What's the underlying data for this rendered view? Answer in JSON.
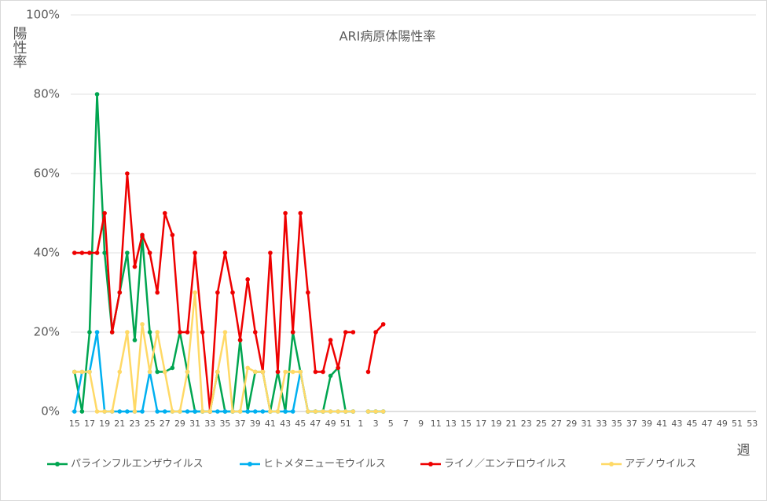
{
  "chart_data": {
    "type": "line",
    "title": "ARI病原体陽性率",
    "y_label": "陽性率",
    "x_label": "週",
    "categories": [
      "15",
      null,
      "17",
      null,
      "19",
      null,
      "21",
      null,
      "23",
      null,
      "25",
      null,
      "27",
      null,
      "29",
      null,
      "31",
      null,
      "33",
      null,
      "35",
      null,
      "37",
      null,
      "39",
      null,
      "41",
      null,
      "43",
      null,
      "45",
      null,
      "47",
      null,
      "49",
      null,
      "51",
      null,
      "1",
      null,
      "3",
      null,
      "5",
      null,
      "7",
      null,
      "9",
      null,
      "11",
      null,
      "13",
      null,
      "15",
      null,
      "17",
      null,
      "19",
      null,
      "21",
      null,
      "23",
      null,
      "25",
      null,
      "27",
      null,
      "29",
      null,
      "31",
      null,
      "33",
      null,
      "35",
      null,
      "37",
      null,
      "39",
      null,
      "41",
      null,
      "43",
      null,
      "45",
      null,
      "47",
      null,
      "49",
      null,
      "51",
      null,
      "53"
    ],
    "series": [
      {
        "name": "パラインフルエンザウイルス",
        "color": "#00a550",
        "values": [
          10,
          0,
          20,
          80,
          40,
          20,
          30,
          40,
          18,
          44,
          20,
          10,
          10,
          11,
          20,
          10,
          0,
          0,
          0,
          10,
          0,
          0,
          18,
          0,
          10,
          10,
          0,
          10,
          0,
          20,
          10,
          0,
          0,
          0,
          9,
          11,
          0,
          0,
          null,
          0,
          0,
          0,
          null,
          null,
          null,
          null,
          null,
          null,
          null,
          null,
          null,
          null,
          null,
          null,
          null,
          null,
          null,
          null,
          null,
          null,
          null,
          null,
          null,
          null,
          null,
          null,
          null,
          null,
          null,
          null,
          null,
          null,
          null,
          null,
          null,
          null,
          null,
          null,
          null,
          null,
          null,
          null,
          null,
          null,
          null,
          null,
          null,
          null,
          null,
          null,
          null
        ]
      },
      {
        "name": "ヒトメタニューモウイルス",
        "color": "#00b0f0",
        "values": [
          0,
          10,
          10,
          20,
          0,
          0,
          0,
          0,
          0,
          0,
          10,
          0,
          0,
          0,
          0,
          0,
          0,
          0,
          0,
          0,
          0,
          0,
          0,
          0,
          0,
          0,
          0,
          0,
          0,
          0,
          10,
          0,
          0,
          0,
          0,
          0,
          0,
          0,
          null,
          0,
          0,
          0,
          null,
          null,
          null,
          null,
          null,
          null,
          null,
          null,
          null,
          null,
          null,
          null,
          null,
          null,
          null,
          null,
          null,
          null,
          null,
          null,
          null,
          null,
          null,
          null,
          null,
          null,
          null,
          null,
          null,
          null,
          null,
          null,
          null,
          null,
          null,
          null,
          null,
          null,
          null,
          null,
          null,
          null,
          null,
          null,
          null,
          null,
          null,
          null,
          null
        ]
      },
      {
        "name": "ライノ／エンテロウイルス",
        "color": "#ee0000",
        "values": [
          40,
          40,
          40,
          40,
          50,
          20,
          30,
          60,
          36.5,
          44.5,
          40,
          30,
          50,
          44.5,
          20,
          20,
          40,
          20,
          0,
          30,
          40,
          30,
          18,
          33.3,
          20,
          10,
          40,
          10,
          50,
          20,
          50,
          30,
          10,
          10,
          18,
          11,
          20,
          20,
          null,
          10,
          20,
          22,
          null,
          null,
          null,
          null,
          null,
          null,
          null,
          null,
          null,
          null,
          null,
          null,
          null,
          null,
          null,
          null,
          null,
          null,
          null,
          null,
          null,
          null,
          null,
          null,
          null,
          null,
          null,
          null,
          null,
          null,
          null,
          null,
          null,
          null,
          null,
          null,
          null,
          null,
          null,
          null,
          null,
          null,
          null,
          null,
          null,
          null,
          null,
          null,
          null
        ]
      },
      {
        "name": "アデノウイルス",
        "color": "#ffd966",
        "values": [
          10,
          10,
          10,
          0,
          0,
          0,
          10,
          20,
          0,
          22,
          10,
          20,
          10,
          0,
          0,
          10,
          30,
          0,
          0,
          10,
          20,
          0,
          0,
          11,
          10,
          10,
          0,
          0,
          10,
          10,
          10,
          0,
          0,
          0,
          0,
          0,
          0,
          0,
          null,
          0,
          0,
          0,
          null,
          null,
          null,
          null,
          null,
          null,
          null,
          null,
          null,
          null,
          null,
          null,
          null,
          null,
          null,
          null,
          null,
          null,
          null,
          null,
          null,
          null,
          null,
          null,
          null,
          null,
          null,
          null,
          null,
          null,
          null,
          null,
          null,
          null,
          null,
          null,
          null,
          null,
          null,
          null,
          null,
          null,
          null,
          null,
          null,
          null,
          null,
          null,
          null
        ]
      }
    ],
    "ylim": [
      0,
      100
    ],
    "yticks": [
      {
        "value": 0,
        "label": "0%"
      },
      {
        "value": 20,
        "label": "20%"
      },
      {
        "value": 40,
        "label": "40%"
      },
      {
        "value": 60,
        "label": "60%"
      },
      {
        "value": 80,
        "label": "80%"
      },
      {
        "value": 100,
        "label": "100%"
      }
    ],
    "grid": true,
    "legend": "bottom"
  }
}
